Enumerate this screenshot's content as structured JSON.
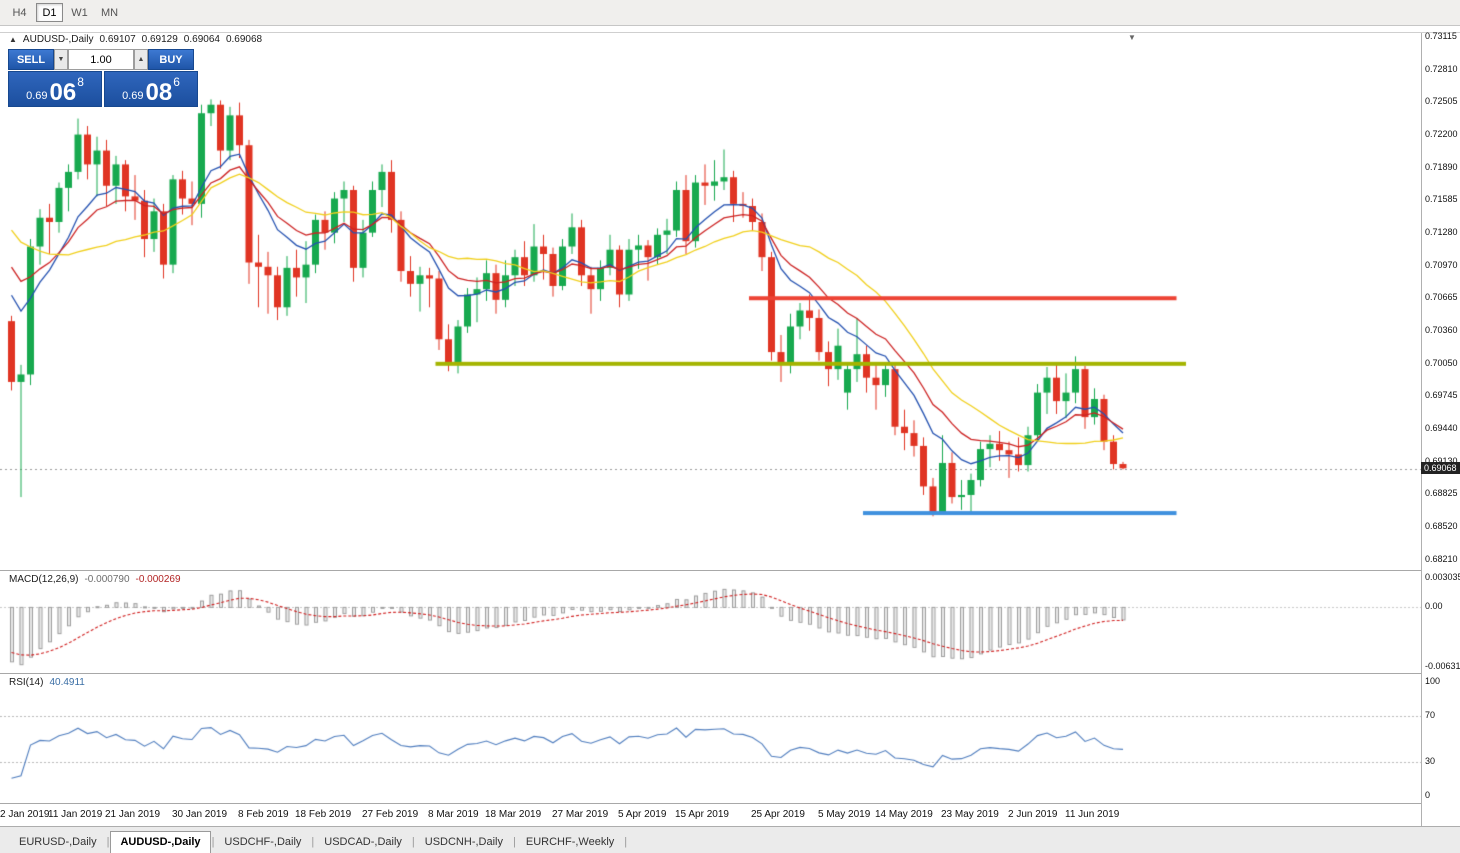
{
  "colors": {
    "bull": "#17a94f",
    "bear": "#e03423",
    "ma_blue": "#2451b0",
    "ma_red": "#cc2222",
    "ma_yellow": "#f0cf1b",
    "hline_red": "#ed4335",
    "hline_olive": "#a4b400",
    "hline_blue": "#3f90de",
    "rsi_line": "#4f7dbe",
    "macd_signal": "#d02020",
    "macd_hist_fill": "#e8e8e8",
    "macd_hist_stroke": "#9e9e9e",
    "price_line": "#9a9a9a",
    "panel_blue": "#2560b8"
  },
  "icons": {
    "one_click_toggle": "▲",
    "chart_shift": "▼",
    "volume_down": "▼",
    "volume_up": "▲"
  },
  "ui": {
    "tab_separator": "|"
  },
  "toolbar": {
    "timeframes": [
      {
        "label": "H4",
        "active": false
      },
      {
        "label": "D1",
        "active": true
      },
      {
        "label": "W1",
        "active": false
      },
      {
        "label": "MN",
        "active": false
      }
    ]
  },
  "chart": {
    "title": {
      "symbol": "AUDUSD-,Daily",
      "open": "0.69107",
      "high": "0.69129",
      "low": "0.69064",
      "close": "0.69068"
    },
    "trade_panel": {
      "sell_label": "SELL",
      "buy_label": "BUY",
      "volume": "1.00",
      "sell_price": {
        "big_figure": "0.69",
        "pips": "06",
        "pipette": "8"
      },
      "buy_price": {
        "big_figure": "0.69",
        "pips": "08",
        "pipette": "6"
      }
    },
    "current_price_label": "0.69068",
    "price_axis_labels": [
      "0.73115",
      "0.72810",
      "0.72505",
      "0.72200",
      "0.71890",
      "0.71585",
      "0.71280",
      "0.70970",
      "0.70665",
      "0.70360",
      "0.70050",
      "0.69745",
      "0.69440",
      "0.69130",
      "0.68825",
      "0.68520",
      "0.68210"
    ]
  },
  "macd": {
    "header_label": "MACD(12,26,9)",
    "value_main": "-0.000790",
    "value_signal": "-0.000269",
    "fast": 12,
    "slow": 26,
    "signal": 9,
    "axis_labels": [
      {
        "value": 0.003035,
        "text": "0.003035"
      },
      {
        "value": 0,
        "text": "0.00"
      },
      {
        "value": -0.006311,
        "text": "-0.006311"
      }
    ]
  },
  "rsi": {
    "header_label": "RSI(14)",
    "value": "40.4911",
    "period": 14,
    "levels": [
      70,
      30
    ],
    "axis_labels": [
      {
        "value": 100,
        "text": "100"
      },
      {
        "value": 70,
        "text": "70"
      },
      {
        "value": 30,
        "text": "30"
      },
      {
        "value": 0,
        "text": "0"
      }
    ]
  },
  "tabs": [
    {
      "label": "EURUSD-,Daily",
      "active": false
    },
    {
      "label": "AUDUSD-,Daily",
      "active": true
    },
    {
      "label": "USDCHF-,Daily",
      "active": false
    },
    {
      "label": "USDCAD-,Daily",
      "active": false
    },
    {
      "label": "USDCNH-,Daily",
      "active": false
    },
    {
      "label": "EURCHF-,Weekly",
      "active": false
    }
  ],
  "chart_data": {
    "type": "candlestick",
    "symbol": "AUDUSD-",
    "timeframe": "Daily",
    "price_axis": {
      "top": 0.73115,
      "bottom": 0.6821,
      "step": 0.00305
    },
    "current_price": 0.69068,
    "macd_scale": {
      "max": 0.003035,
      "min": -0.006311
    },
    "rsi_scale": {
      "max": 100,
      "min": 0
    },
    "moving_averages": [
      {
        "type": "EMA",
        "period": 9,
        "color_key": "ma_blue"
      },
      {
        "type": "EMA",
        "period": 14,
        "color_key": "ma_red"
      },
      {
        "type": "SMA",
        "period": 20,
        "color_key": "ma_yellow"
      }
    ],
    "hlines": [
      {
        "price": 0.70665,
        "color_key": "hline_red",
        "from_index": 78,
        "to_index": 123
      },
      {
        "price": 0.7005,
        "color_key": "hline_olive",
        "from_index": 45,
        "to_index": 124
      },
      {
        "price": 0.6865,
        "color_key": "hline_blue",
        "from_index": 90,
        "to_index": 123
      }
    ],
    "x_ticks": [
      {
        "index": 0,
        "label": "2 Jan 2019"
      },
      {
        "index": 7,
        "label": "11 Jan 2019"
      },
      {
        "index": 13,
        "label": "21 Jan 2019"
      },
      {
        "index": 20,
        "label": "30 Jan 2019"
      },
      {
        "index": 27,
        "label": "8 Feb 2019"
      },
      {
        "index": 33,
        "label": "18 Feb 2019"
      },
      {
        "index": 40,
        "label": "27 Feb 2019"
      },
      {
        "index": 47,
        "label": "8 Mar 2019"
      },
      {
        "index": 53,
        "label": "18 Mar 2019"
      },
      {
        "index": 60,
        "label": "27 Mar 2019"
      },
      {
        "index": 67,
        "label": "5 Apr 2019"
      },
      {
        "index": 73,
        "label": "15 Apr 2019"
      },
      {
        "index": 81,
        "label": "25 Apr 2019"
      },
      {
        "index": 88,
        "label": "5 May 2019"
      },
      {
        "index": 94,
        "label": "14 May 2019"
      },
      {
        "index": 101,
        "label": "23 May 2019"
      },
      {
        "index": 108,
        "label": "2 Jun 2019"
      },
      {
        "index": 114,
        "label": "11 Jun 2019"
      }
    ],
    "warmup_closes": [
      0.73,
      0.7282,
      0.7265,
      0.7278,
      0.7252,
      0.7232,
      0.7245,
      0.7222,
      0.7205,
      0.7218,
      0.7195,
      0.7178,
      0.719,
      0.7165,
      0.7148,
      0.716,
      0.7138,
      0.7118,
      0.713,
      0.7105,
      0.7088,
      0.7095,
      0.7075,
      0.7082,
      0.706,
      0.7048
    ],
    "candles": [
      [
        0.7045,
        0.705,
        0.698,
        0.6988
      ],
      [
        0.6988,
        0.7004,
        0.688,
        0.6995
      ],
      [
        0.6995,
        0.7122,
        0.6985,
        0.7115
      ],
      [
        0.7115,
        0.715,
        0.7098,
        0.7142
      ],
      [
        0.7142,
        0.7155,
        0.7108,
        0.7138
      ],
      [
        0.7138,
        0.7175,
        0.7128,
        0.717
      ],
      [
        0.717,
        0.7192,
        0.7148,
        0.7185
      ],
      [
        0.7185,
        0.7235,
        0.7178,
        0.722
      ],
      [
        0.722,
        0.7228,
        0.7178,
        0.7192
      ],
      [
        0.7192,
        0.7218,
        0.7162,
        0.7205
      ],
      [
        0.7205,
        0.7215,
        0.7153,
        0.7172
      ],
      [
        0.7172,
        0.72,
        0.7155,
        0.7192
      ],
      [
        0.7192,
        0.7196,
        0.7148,
        0.7162
      ],
      [
        0.7162,
        0.7182,
        0.714,
        0.7158
      ],
      [
        0.7158,
        0.7168,
        0.7105,
        0.7122
      ],
      [
        0.7122,
        0.716,
        0.711,
        0.7148
      ],
      [
        0.7148,
        0.7155,
        0.7085,
        0.7098
      ],
      [
        0.7098,
        0.7182,
        0.709,
        0.7178
      ],
      [
        0.7178,
        0.7186,
        0.7145,
        0.716
      ],
      [
        0.716,
        0.7176,
        0.7135,
        0.7155
      ],
      [
        0.7155,
        0.7248,
        0.7142,
        0.724
      ],
      [
        0.724,
        0.7253,
        0.7228,
        0.7248
      ],
      [
        0.7248,
        0.7252,
        0.7188,
        0.7205
      ],
      [
        0.7205,
        0.7246,
        0.7196,
        0.7238
      ],
      [
        0.7238,
        0.725,
        0.7198,
        0.721
      ],
      [
        0.721,
        0.7215,
        0.708,
        0.71
      ],
      [
        0.71,
        0.7126,
        0.7058,
        0.7096
      ],
      [
        0.7096,
        0.711,
        0.7052,
        0.7088
      ],
      [
        0.7088,
        0.7096,
        0.7046,
        0.7058
      ],
      [
        0.7058,
        0.7106,
        0.705,
        0.7095
      ],
      [
        0.7095,
        0.7112,
        0.7068,
        0.7086
      ],
      [
        0.7086,
        0.712,
        0.7062,
        0.7098
      ],
      [
        0.7098,
        0.7145,
        0.709,
        0.714
      ],
      [
        0.714,
        0.7148,
        0.7112,
        0.7128
      ],
      [
        0.7128,
        0.7166,
        0.7118,
        0.716
      ],
      [
        0.716,
        0.7176,
        0.7138,
        0.7168
      ],
      [
        0.7168,
        0.7172,
        0.7082,
        0.7095
      ],
      [
        0.7095,
        0.714,
        0.7086,
        0.7128
      ],
      [
        0.7128,
        0.7176,
        0.7124,
        0.7168
      ],
      [
        0.7168,
        0.7192,
        0.7152,
        0.7185
      ],
      [
        0.7185,
        0.7196,
        0.7128,
        0.714
      ],
      [
        0.714,
        0.7148,
        0.7082,
        0.7092
      ],
      [
        0.7092,
        0.7106,
        0.7068,
        0.708
      ],
      [
        0.708,
        0.7096,
        0.7054,
        0.7088
      ],
      [
        0.7088,
        0.7095,
        0.7058,
        0.7085
      ],
      [
        0.7085,
        0.7092,
        0.7018,
        0.7028
      ],
      [
        0.7028,
        0.7042,
        0.6998,
        0.7006
      ],
      [
        0.7006,
        0.7046,
        0.6996,
        0.704
      ],
      [
        0.704,
        0.7076,
        0.7034,
        0.707
      ],
      [
        0.707,
        0.7086,
        0.7044,
        0.7075
      ],
      [
        0.7075,
        0.7102,
        0.7064,
        0.709
      ],
      [
        0.709,
        0.7098,
        0.7052,
        0.7065
      ],
      [
        0.7065,
        0.7102,
        0.7058,
        0.7088
      ],
      [
        0.7088,
        0.7112,
        0.7078,
        0.7105
      ],
      [
        0.7105,
        0.712,
        0.7078,
        0.7088
      ],
      [
        0.7088,
        0.7136,
        0.7082,
        0.7115
      ],
      [
        0.7115,
        0.7126,
        0.7084,
        0.7108
      ],
      [
        0.7108,
        0.7114,
        0.7068,
        0.7078
      ],
      [
        0.7078,
        0.7122,
        0.7074,
        0.7115
      ],
      [
        0.7115,
        0.7146,
        0.7108,
        0.7133
      ],
      [
        0.7133,
        0.714,
        0.7078,
        0.7088
      ],
      [
        0.7088,
        0.7096,
        0.7052,
        0.7075
      ],
      [
        0.7075,
        0.7102,
        0.7064,
        0.7095
      ],
      [
        0.7095,
        0.7126,
        0.7088,
        0.7112
      ],
      [
        0.7112,
        0.7116,
        0.7058,
        0.707
      ],
      [
        0.707,
        0.7122,
        0.7064,
        0.7112
      ],
      [
        0.7112,
        0.7126,
        0.7094,
        0.7116
      ],
      [
        0.7116,
        0.7121,
        0.7083,
        0.7105
      ],
      [
        0.7105,
        0.7132,
        0.7098,
        0.7126
      ],
      [
        0.7126,
        0.7141,
        0.7108,
        0.713
      ],
      [
        0.713,
        0.7176,
        0.7124,
        0.7168
      ],
      [
        0.7168,
        0.7182,
        0.7108,
        0.712
      ],
      [
        0.712,
        0.7182,
        0.7114,
        0.7175
      ],
      [
        0.7175,
        0.7192,
        0.7154,
        0.7172
      ],
      [
        0.7172,
        0.7196,
        0.7158,
        0.7176
      ],
      [
        0.7176,
        0.7206,
        0.7168,
        0.718
      ],
      [
        0.718,
        0.7186,
        0.7138,
        0.7155
      ],
      [
        0.7155,
        0.7166,
        0.7142,
        0.7153
      ],
      [
        0.7153,
        0.716,
        0.713,
        0.7138
      ],
      [
        0.7138,
        0.7146,
        0.7092,
        0.7105
      ],
      [
        0.7105,
        0.711,
        0.7008,
        0.7016
      ],
      [
        0.7016,
        0.7032,
        0.6988,
        0.7005
      ],
      [
        0.7005,
        0.7052,
        0.6996,
        0.704
      ],
      [
        0.704,
        0.7062,
        0.7028,
        0.7055
      ],
      [
        0.7055,
        0.707,
        0.7036,
        0.7048
      ],
      [
        0.7048,
        0.7056,
        0.7008,
        0.7016
      ],
      [
        0.7016,
        0.7026,
        0.6984,
        0.7
      ],
      [
        0.7,
        0.7038,
        0.699,
        0.7022
      ],
      [
        0.6978,
        0.7006,
        0.6962,
        0.7
      ],
      [
        0.7,
        0.7048,
        0.6988,
        0.7014
      ],
      [
        0.7014,
        0.7022,
        0.6978,
        0.6992
      ],
      [
        0.6992,
        0.7006,
        0.6962,
        0.6985
      ],
      [
        0.6985,
        0.7006,
        0.6974,
        0.7
      ],
      [
        0.7,
        0.7004,
        0.6938,
        0.6946
      ],
      [
        0.6946,
        0.6962,
        0.6924,
        0.694
      ],
      [
        0.694,
        0.6952,
        0.6918,
        0.6928
      ],
      [
        0.6928,
        0.6936,
        0.6882,
        0.689
      ],
      [
        0.689,
        0.6898,
        0.6862,
        0.6866
      ],
      [
        0.6866,
        0.6938,
        0.6864,
        0.6912
      ],
      [
        0.6912,
        0.6922,
        0.6874,
        0.688
      ],
      [
        0.688,
        0.6896,
        0.6868,
        0.6882
      ],
      [
        0.6882,
        0.6902,
        0.6864,
        0.6896
      ],
      [
        0.6896,
        0.6932,
        0.689,
        0.6925
      ],
      [
        0.6925,
        0.6938,
        0.6908,
        0.693
      ],
      [
        0.693,
        0.6942,
        0.6914,
        0.6924
      ],
      [
        0.6924,
        0.6932,
        0.6898,
        0.692
      ],
      [
        0.692,
        0.6936,
        0.6904,
        0.691
      ],
      [
        0.691,
        0.6946,
        0.6904,
        0.6938
      ],
      [
        0.6938,
        0.6986,
        0.6932,
        0.6978
      ],
      [
        0.6978,
        0.7002,
        0.6958,
        0.6992
      ],
      [
        0.6992,
        0.7006,
        0.6958,
        0.697
      ],
      [
        0.697,
        0.6996,
        0.6954,
        0.6978
      ],
      [
        0.6978,
        0.7012,
        0.6968,
        0.7
      ],
      [
        0.7,
        0.7003,
        0.6944,
        0.6955
      ],
      [
        0.6955,
        0.6982,
        0.6948,
        0.6972
      ],
      [
        0.6972,
        0.6976,
        0.6924,
        0.6932
      ],
      [
        0.6932,
        0.6938,
        0.6906,
        0.6911
      ],
      [
        0.6911,
        0.6913,
        0.6906,
        0.6907
      ]
    ]
  }
}
